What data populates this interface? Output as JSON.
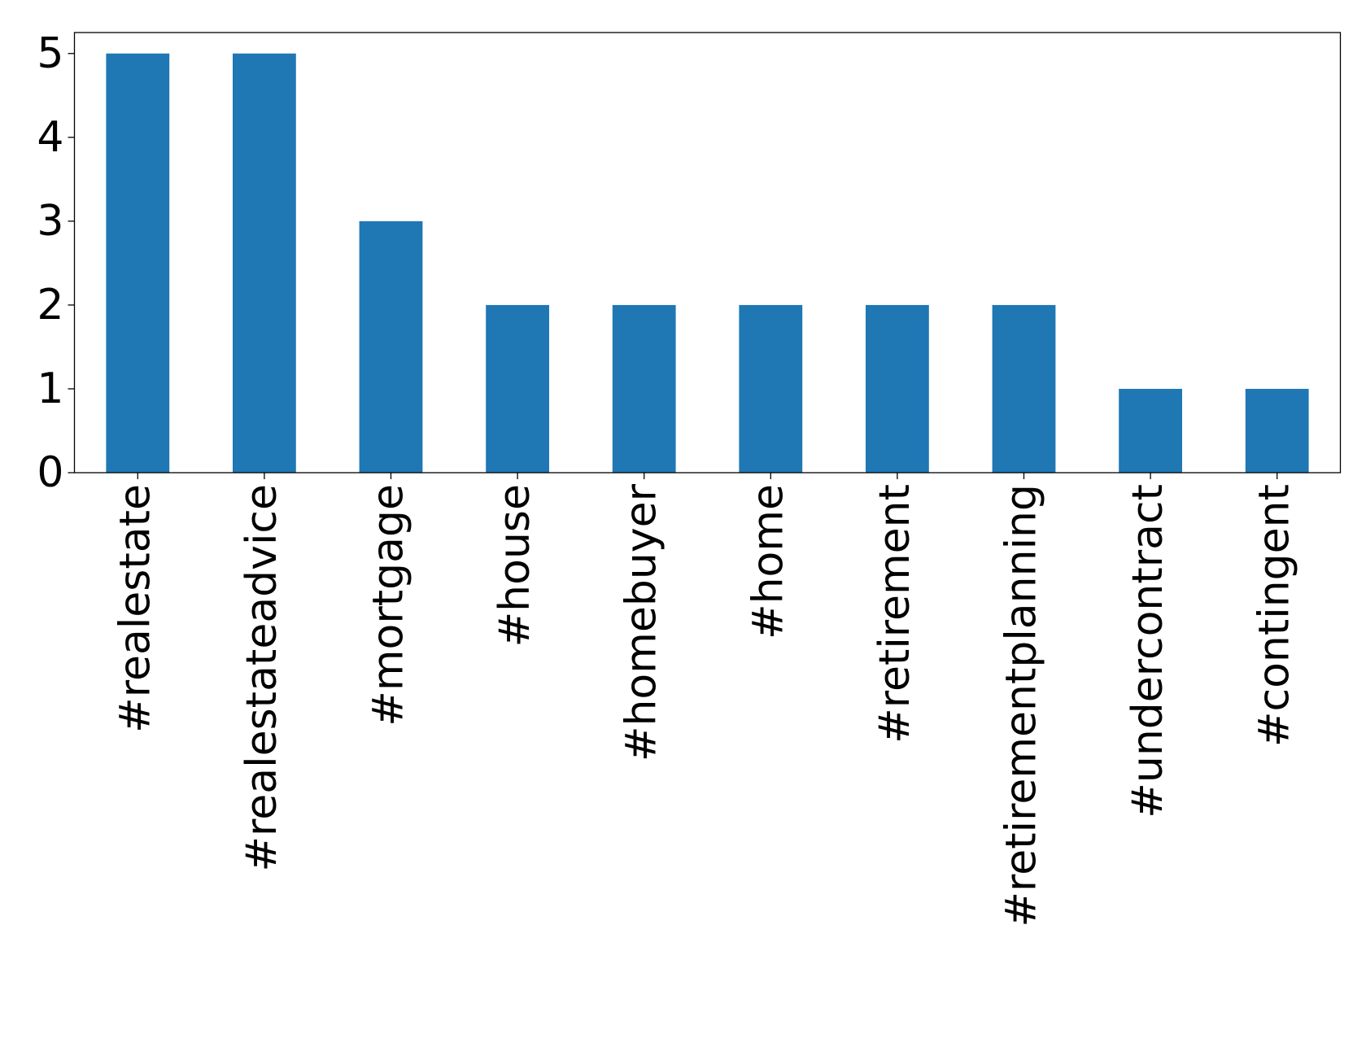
{
  "chart_data": {
    "type": "bar",
    "categories": [
      "#realestate",
      "#realestateadvice",
      "#mortgage",
      "#house",
      "#homebuyer",
      "#home",
      "#retirement",
      "#retirementplanning",
      "#undercontract",
      "#contingent"
    ],
    "values": [
      5,
      5,
      3,
      2,
      2,
      2,
      2,
      2,
      1,
      1
    ],
    "color": "#1f77b4",
    "ylim": [
      0,
      5.25
    ],
    "yticks": [
      0,
      1,
      2,
      3,
      4,
      5
    ],
    "grid": false
  }
}
